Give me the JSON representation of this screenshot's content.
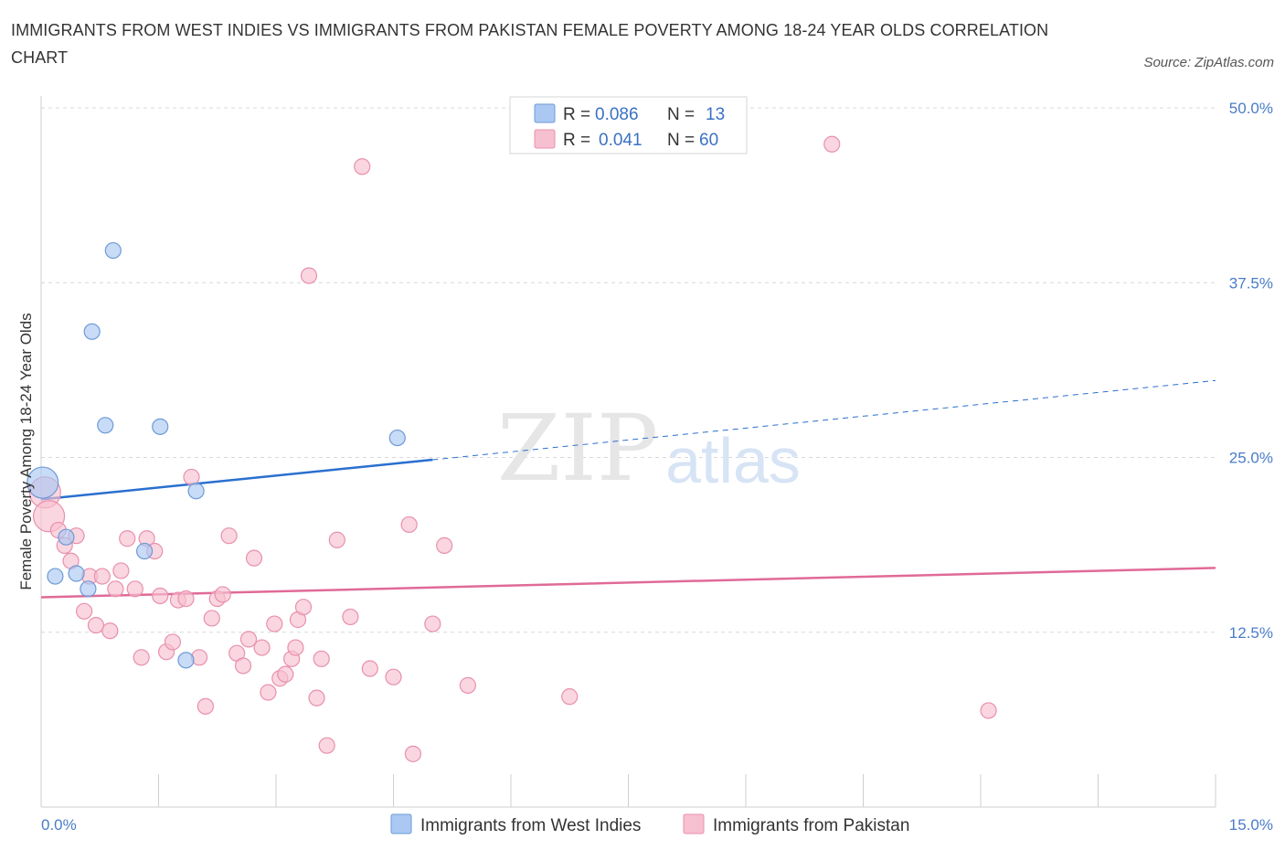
{
  "title": "IMMIGRANTS FROM WEST INDIES VS IMMIGRANTS FROM PAKISTAN FEMALE POVERTY AMONG 18-24 YEAR OLDS CORRELATION CHART",
  "source": "Source: ZipAtlas.com",
  "watermark": {
    "zip": "ZIP",
    "atlas": "atlas"
  },
  "legend": {
    "rows": [
      {
        "r_label": "R =",
        "r_value": "0.086",
        "n_label": "N =",
        "n_value": "13"
      },
      {
        "r_label": "R =",
        "r_value": "0.041",
        "n_label": "N =",
        "n_value": "60"
      }
    ]
  },
  "bottom_legend": [
    "Immigrants from West Indies",
    "Immigrants from Pakistan"
  ],
  "colors": {
    "west_indies_fill": "#aac8f2",
    "west_indies_stroke": "#6e9ad6",
    "west_indies_line": "#2a6fcf",
    "pakistan_fill": "#f7c0d0",
    "pakistan_stroke": "#e890ad",
    "pakistan_line": "#e06a97",
    "grid": "#d8d8d8",
    "axis_label": "#4a7cc7"
  },
  "chart_data": {
    "type": "scatter",
    "title": "IMMIGRANTS FROM WEST INDIES VS IMMIGRANTS FROM PAKISTAN FEMALE POVERTY AMONG 18-24 YEAR OLDS CORRELATION CHART",
    "xlabel": "",
    "ylabel": "Female Poverty Among 18-24 Year Olds",
    "xlim": [
      0,
      15
    ],
    "ylim": [
      0,
      50
    ],
    "x_tick_labels": [
      "0.0%",
      "15.0%"
    ],
    "y_ticks": [
      12.5,
      25.0,
      37.5,
      50.0
    ],
    "y_tick_labels": [
      "12.5%",
      "25.0%",
      "37.5%",
      "50.0%"
    ],
    "grid": true,
    "legend_position": "top-center",
    "series": [
      {
        "name": "Immigrants from West Indies",
        "r": 0.086,
        "n": 13,
        "trend": {
          "x0": 0,
          "y0": 22.0,
          "x1": 15,
          "y1": 30.5,
          "solid_until_x": 5.0
        },
        "points": [
          {
            "x": 0.02,
            "y": 23.2,
            "big": true
          },
          {
            "x": 0.18,
            "y": 16.5
          },
          {
            "x": 0.32,
            "y": 19.3
          },
          {
            "x": 0.45,
            "y": 16.7
          },
          {
            "x": 0.6,
            "y": 15.6
          },
          {
            "x": 0.65,
            "y": 34.0
          },
          {
            "x": 0.82,
            "y": 27.3
          },
          {
            "x": 0.92,
            "y": 39.8
          },
          {
            "x": 1.32,
            "y": 18.3
          },
          {
            "x": 1.52,
            "y": 27.2
          },
          {
            "x": 1.85,
            "y": 10.5
          },
          {
            "x": 1.98,
            "y": 22.6
          },
          {
            "x": 4.55,
            "y": 26.4
          }
        ]
      },
      {
        "name": "Immigrants from Pakistan",
        "r": 0.041,
        "n": 60,
        "trend": {
          "x0": 0,
          "y0": 15.0,
          "x1": 15,
          "y1": 17.1
        },
        "points": [
          {
            "x": 0.05,
            "y": 22.5,
            "big": true
          },
          {
            "x": 0.1,
            "y": 20.8,
            "big": true
          },
          {
            "x": 0.22,
            "y": 19.8
          },
          {
            "x": 0.3,
            "y": 18.7
          },
          {
            "x": 0.38,
            "y": 17.6
          },
          {
            "x": 0.45,
            "y": 19.4
          },
          {
            "x": 0.55,
            "y": 14.0
          },
          {
            "x": 0.62,
            "y": 16.5
          },
          {
            "x": 0.7,
            "y": 13.0
          },
          {
            "x": 0.78,
            "y": 16.5
          },
          {
            "x": 0.88,
            "y": 12.6
          },
          {
            "x": 0.95,
            "y": 15.6
          },
          {
            "x": 1.02,
            "y": 16.9
          },
          {
            "x": 1.1,
            "y": 19.2
          },
          {
            "x": 1.2,
            "y": 15.6
          },
          {
            "x": 1.28,
            "y": 10.7
          },
          {
            "x": 1.35,
            "y": 19.2
          },
          {
            "x": 1.45,
            "y": 18.3
          },
          {
            "x": 1.52,
            "y": 15.1
          },
          {
            "x": 1.6,
            "y": 11.1
          },
          {
            "x": 1.68,
            "y": 11.8
          },
          {
            "x": 1.75,
            "y": 14.8
          },
          {
            "x": 1.85,
            "y": 14.9
          },
          {
            "x": 1.92,
            "y": 23.6
          },
          {
            "x": 2.02,
            "y": 10.7
          },
          {
            "x": 2.1,
            "y": 7.2
          },
          {
            "x": 2.18,
            "y": 13.5
          },
          {
            "x": 2.25,
            "y": 14.9
          },
          {
            "x": 2.32,
            "y": 15.2
          },
          {
            "x": 2.4,
            "y": 19.4
          },
          {
            "x": 2.5,
            "y": 11.0
          },
          {
            "x": 2.58,
            "y": 10.1
          },
          {
            "x": 2.65,
            "y": 12.0
          },
          {
            "x": 2.72,
            "y": 17.8
          },
          {
            "x": 2.82,
            "y": 11.4
          },
          {
            "x": 2.9,
            "y": 8.2
          },
          {
            "x": 2.98,
            "y": 13.1
          },
          {
            "x": 3.05,
            "y": 9.2
          },
          {
            "x": 3.12,
            "y": 9.5
          },
          {
            "x": 3.2,
            "y": 10.6
          },
          {
            "x": 3.28,
            "y": 13.4
          },
          {
            "x": 3.35,
            "y": 14.3
          },
          {
            "x": 3.42,
            "y": 38.0
          },
          {
            "x": 3.52,
            "y": 7.8
          },
          {
            "x": 3.58,
            "y": 10.6
          },
          {
            "x": 3.65,
            "y": 4.4
          },
          {
            "x": 3.78,
            "y": 19.1
          },
          {
            "x": 3.95,
            "y": 13.6
          },
          {
            "x": 4.1,
            "y": 45.8
          },
          {
            "x": 4.2,
            "y": 9.9
          },
          {
            "x": 4.5,
            "y": 9.3
          },
          {
            "x": 4.7,
            "y": 20.2
          },
          {
            "x": 4.75,
            "y": 3.8
          },
          {
            "x": 5.0,
            "y": 13.1
          },
          {
            "x": 5.15,
            "y": 18.7
          },
          {
            "x": 5.45,
            "y": 8.7
          },
          {
            "x": 6.75,
            "y": 7.9
          },
          {
            "x": 3.25,
            "y": 11.4
          },
          {
            "x": 10.1,
            "y": 47.4
          },
          {
            "x": 12.1,
            "y": 6.9
          }
        ]
      }
    ]
  }
}
